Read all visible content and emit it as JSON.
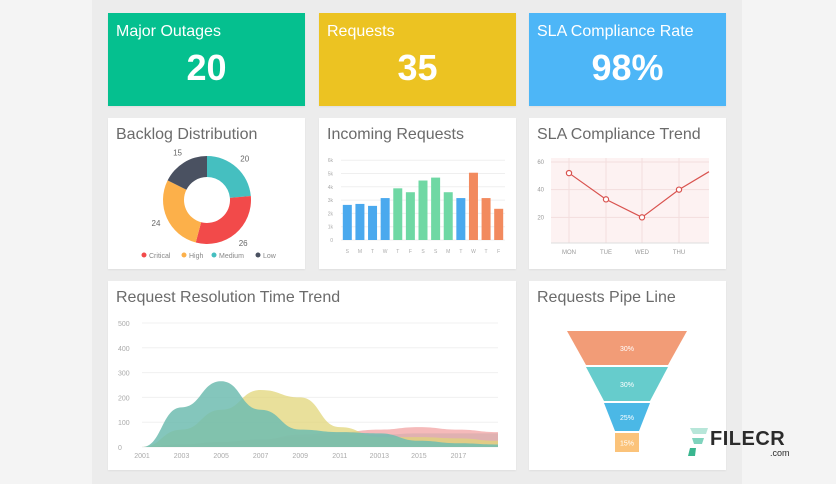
{
  "colors": {
    "green": "#05c08f",
    "yellow": "#ecc322",
    "blue": "#4db6f7",
    "critical": "#f24a4a",
    "high": "#fcb04a",
    "medium": "#45bfc0",
    "low": "#4a5161",
    "bar_blue": "#4aa9ee",
    "bar_green": "#6fd8a4",
    "bar_orange": "#f28a5e"
  },
  "kpis": [
    {
      "label": "Major Outages",
      "value": "20"
    },
    {
      "label": "Requests",
      "value": "35"
    },
    {
      "label": "SLA Compliance Rate",
      "value": "98%"
    }
  ],
  "backlog": {
    "title": "Backlog Distribution",
    "chart_data": {
      "type": "pie",
      "title": "Backlog Distribution",
      "slices": [
        {
          "name": "Critical",
          "value": 26
        },
        {
          "name": "High",
          "value": 24
        },
        {
          "name": "Medium",
          "value": 20
        },
        {
          "name": "Low",
          "value": 15
        }
      ],
      "legend": "bottom"
    }
  },
  "incoming": {
    "title": "Incoming Requests",
    "chart_data": {
      "type": "bar",
      "title": "Incoming Requests",
      "categories": [
        "S",
        "M",
        "T",
        "W",
        "T",
        "F",
        "S",
        "S",
        "M",
        "T",
        "W",
        "T",
        "F"
      ],
      "values": [
        3.6,
        3.7,
        3.5,
        4.3,
        5.3,
        4.9,
        6.1,
        6.4,
        4.9,
        4.3,
        6.9,
        4.3,
        3.2
      ],
      "ylim": [
        0,
        8
      ],
      "yticks": [
        "0",
        "1k",
        "2k",
        "3k",
        "4k",
        "5k",
        "6k"
      ],
      "grid": true
    }
  },
  "sla_trend": {
    "title": "SLA Compliance Trend",
    "chart_data": {
      "type": "line",
      "title": "SLA Compliance Trend",
      "categories": [
        "MON",
        "TUE",
        "WED",
        "THU"
      ],
      "values": [
        52,
        33,
        20,
        40
      ],
      "end_value": 53,
      "ylim": [
        0,
        60
      ],
      "yticks": [
        20,
        40,
        60
      ],
      "grid": true
    }
  },
  "resolution": {
    "title": "Request Resolution Time Trend",
    "chart_data": {
      "type": "area",
      "title": "Request Resolution Time Trend",
      "x": [
        2001,
        2003,
        2005,
        2007,
        2009,
        2011,
        2013,
        2015,
        2017,
        2019
      ],
      "xticks": [
        "2001",
        "2003",
        "2005",
        "2007",
        "2009",
        "2011",
        "20013",
        "2015",
        "2017"
      ],
      "ylim": [
        0,
        500
      ],
      "yticks": [
        0,
        100,
        200,
        300,
        400,
        500
      ],
      "series": [
        {
          "values": [
            0,
            160,
            265,
            150,
            70,
            60,
            55,
            25,
            15,
            10
          ]
        },
        {
          "values": [
            0,
            70,
            150,
            230,
            200,
            80,
            40,
            40,
            35,
            25
          ]
        },
        {
          "values": [
            0,
            10,
            20,
            30,
            50,
            60,
            70,
            80,
            70,
            60
          ]
        },
        {
          "values": [
            0,
            10,
            20,
            30,
            40,
            45,
            50,
            55,
            55,
            55
          ]
        }
      ],
      "series_colors": [
        "#6fbcb0",
        "#e1d57a",
        "#f1a3a3",
        "#8fcfd0"
      ]
    }
  },
  "pipeline": {
    "title": "Requests Pipe Line",
    "chart_data": {
      "type": "funnel",
      "title": "Requests Pipe Line",
      "stages": [
        {
          "label": "30%",
          "value": 30,
          "color": "#f29c77"
        },
        {
          "label": "30%",
          "value": 30,
          "color": "#66cccc"
        },
        {
          "label": "25%",
          "value": 25,
          "color": "#4bb8e6"
        },
        {
          "label": "15%",
          "value": 15,
          "color": "#fbc37a"
        }
      ]
    }
  },
  "watermark": {
    "text": "FILECR",
    "sub": ".com"
  }
}
